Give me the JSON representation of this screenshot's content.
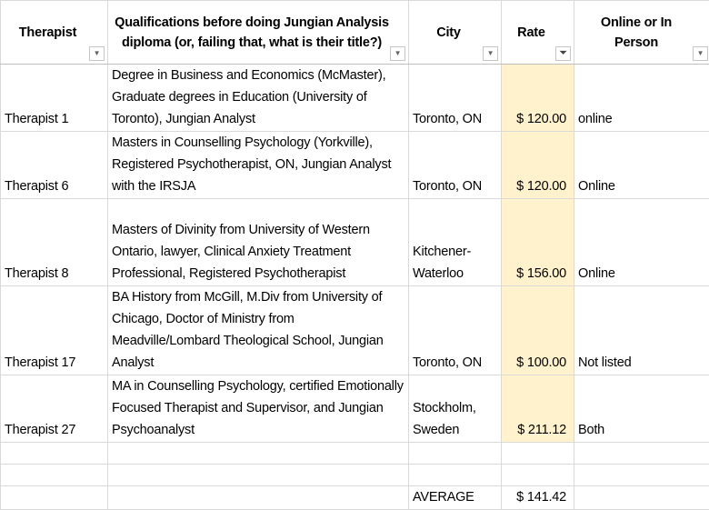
{
  "headers": [
    {
      "label": "Therapist",
      "filter_icon": "dropdown-arrow-icon"
    },
    {
      "label": "Qualifications before doing Jungian Analysis diploma (or, failing that, what is their title?)",
      "filter_icon": "dropdown-arrow-icon"
    },
    {
      "label": "City",
      "filter_icon": "dropdown-arrow-icon"
    },
    {
      "label": "Rate",
      "filter_icon": "filter-active-icon"
    },
    {
      "label": "Online or In Person",
      "filter_icon": "dropdown-arrow-icon"
    }
  ],
  "rows": [
    {
      "therapist": "Therapist 1",
      "qualifications": "Degree in Business and Economics (McMaster), Graduate degrees in Education (University of Toronto), Jungian Analyst",
      "city": "Toronto, ON",
      "rate": "$ 120.00",
      "mode": "online"
    },
    {
      "therapist": "Therapist 6",
      "qualifications": "Masters in Counselling Psychology (Yorkville), Registered Psychotherapist, ON, Jungian Analyst with the IRSJA",
      "city": "Toronto, ON",
      "rate": "$ 120.00",
      "mode": "Online"
    },
    {
      "therapist": "Therapist 8",
      "qualifications": "Masters of Divinity from University of Western Ontario, lawyer, Clinical Anxiety Treatment Professional, Registered Psychotherapist",
      "city": "Kitchener-Waterloo",
      "rate": "$ 156.00",
      "mode": "Online"
    },
    {
      "therapist": "Therapist 17",
      "qualifications": "BA History from McGill, M.Div from University of Chicago, Doctor of Ministry from Meadville/Lombard Theological School, Jungian Analyst",
      "city": "Toronto, ON",
      "rate": "$ 100.00",
      "mode": "Not listed"
    },
    {
      "therapist": "Therapist 27",
      "qualifications": "MA in Counselling Psychology, certified Emotionally Focused Therapist and Supervisor, and Jungian Psychoanalyst",
      "city": "Stockholm, Sweden",
      "rate": "$ 211.12",
      "mode": "Both"
    }
  ],
  "summary": {
    "label": "AVERAGE",
    "value": "$ 141.42"
  },
  "colors": {
    "rate_highlight": "#fff2cc",
    "gridline": "#d9d9d9"
  }
}
